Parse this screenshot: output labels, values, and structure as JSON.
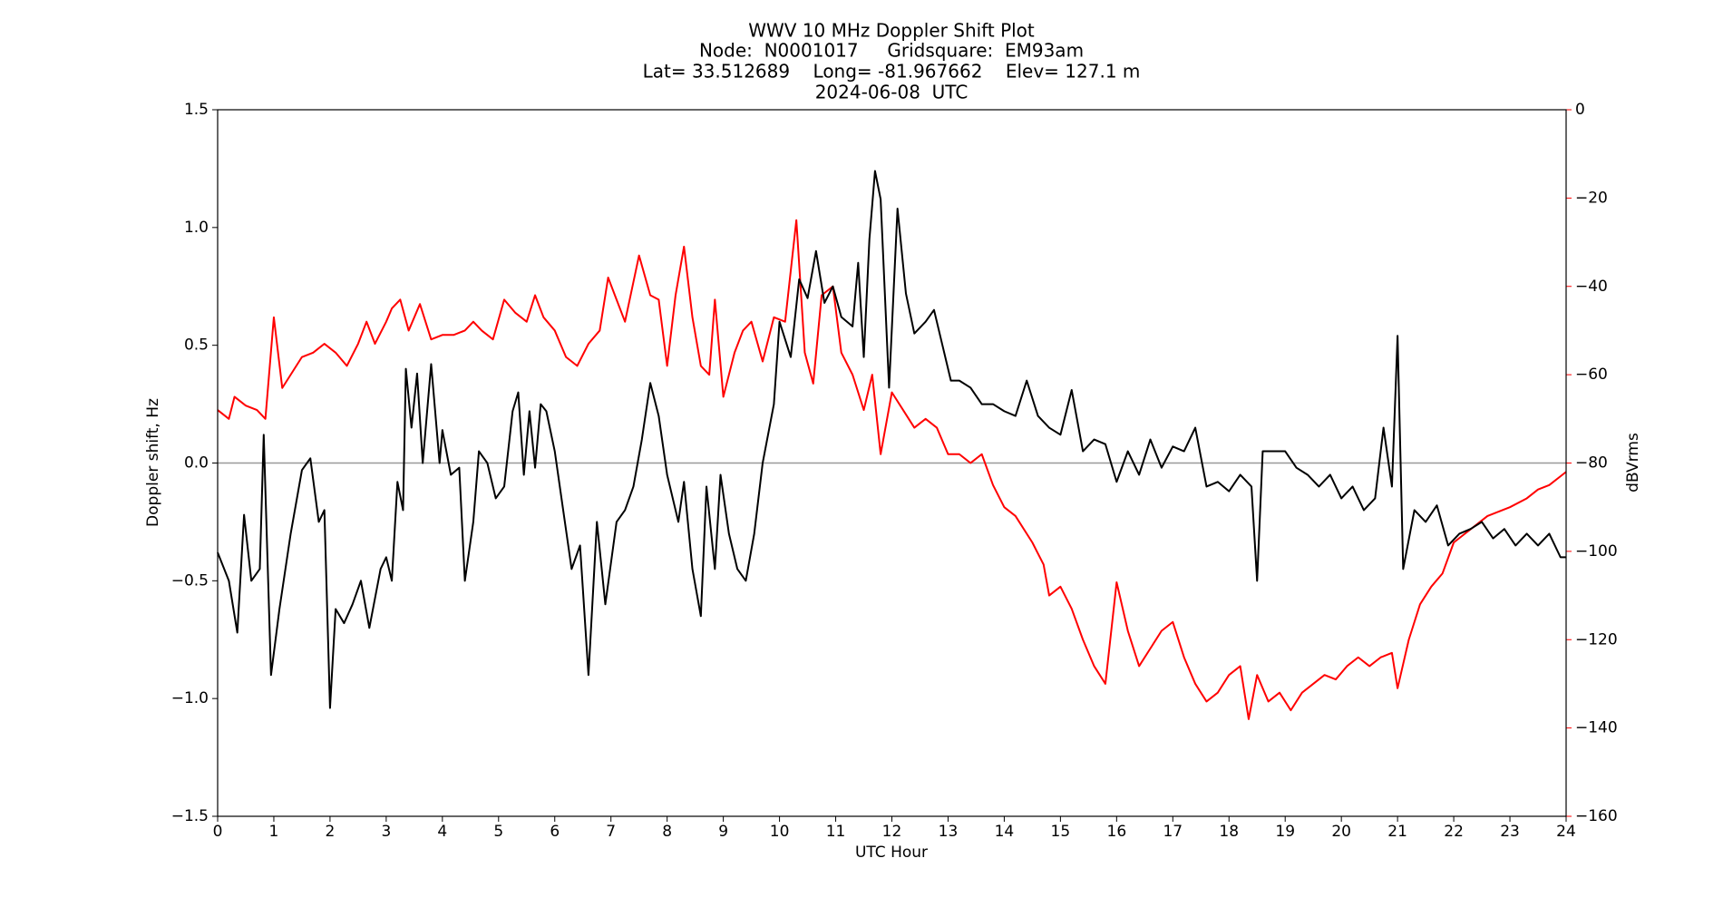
{
  "chart_data": {
    "type": "line",
    "title": "WWV 10 MHz Doppler Shift Plot",
    "subtitle": [
      "Node:  N0001017     Gridsquare:  EM93am",
      "Lat= 33.512689    Long= -81.967662    Elev= 127.1 m",
      "2024-06-08  UTC"
    ],
    "x_label": "UTC Hour",
    "y_label": "Doppler shift, Hz",
    "y2_label": "dBVrms",
    "xlim": [
      0,
      24
    ],
    "xticks": [
      0,
      1,
      2,
      3,
      4,
      5,
      6,
      7,
      8,
      9,
      10,
      11,
      12,
      13,
      14,
      15,
      16,
      17,
      18,
      19,
      20,
      21,
      22,
      23,
      24
    ],
    "ylim": [
      -1.5,
      1.5
    ],
    "yticks": [
      {
        "value": -1.5,
        "label": "−1.5"
      },
      {
        "value": -1.0,
        "label": "−1.0"
      },
      {
        "value": -0.5,
        "label": "−0.5"
      },
      {
        "value": 0,
        "label": "0.0"
      },
      {
        "value": 0.5,
        "label": "0.5"
      },
      {
        "value": 1.0,
        "label": "1.0"
      },
      {
        "value": 1.5,
        "label": "1.5"
      }
    ],
    "y2lim": [
      -160,
      0
    ],
    "y2ticks": [
      {
        "value": -160,
        "label": "−160"
      },
      {
        "value": -140,
        "label": "−140"
      },
      {
        "value": -120,
        "label": "−120"
      },
      {
        "value": -100,
        "label": "−100"
      },
      {
        "value": -80,
        "label": "−80"
      },
      {
        "value": -60,
        "label": "−60"
      },
      {
        "value": -40,
        "label": "−40"
      },
      {
        "value": -20,
        "label": "−20"
      },
      0
    ],
    "y2_color": "#ff0000",
    "reference_line": 0,
    "series": [
      {
        "color": "#000000",
        "x": [
          0,
          0.2,
          0.35,
          0.47,
          0.6,
          0.75,
          0.82,
          0.95,
          1.1,
          1.3,
          1.5,
          1.65,
          1.8,
          1.9,
          2.0,
          2.1,
          2.25,
          2.4,
          2.55,
          2.7,
          2.9,
          3.0,
          3.1,
          3.2,
          3.3,
          3.35,
          3.45,
          3.55,
          3.65,
          3.8,
          3.95,
          4.0,
          4.15,
          4.3,
          4.4,
          4.55,
          4.65,
          4.8,
          4.95,
          5.1,
          5.25,
          5.35,
          5.45,
          5.55,
          5.65,
          5.75,
          5.85,
          6.0,
          6.15,
          6.3,
          6.45,
          6.6,
          6.75,
          6.9,
          7.1,
          7.25,
          7.4,
          7.55,
          7.7,
          7.85,
          8.0,
          8.2,
          8.3,
          8.45,
          8.6,
          8.7,
          8.85,
          8.95,
          9.1,
          9.25,
          9.4,
          9.55,
          9.7,
          9.9,
          10.0,
          10.2,
          10.35,
          10.5,
          10.65,
          10.8,
          10.95,
          11.1,
          11.3,
          11.4,
          11.5,
          11.6,
          11.7,
          11.8,
          11.95,
          12.1,
          12.25,
          12.4,
          12.6,
          12.75,
          12.9,
          13.05,
          13.2,
          13.4,
          13.6,
          13.8,
          14.0,
          14.2,
          14.4,
          14.6,
          14.8,
          15.0,
          15.2,
          15.4,
          15.6,
          15.8,
          16.0,
          16.2,
          16.4,
          16.6,
          16.8,
          17.0,
          17.2,
          17.4,
          17.6,
          17.8,
          18.0,
          18.2,
          18.4,
          18.5,
          18.6,
          18.8,
          19.0,
          19.2,
          19.4,
          19.6,
          19.8,
          20.0,
          20.2,
          20.4,
          20.6,
          20.75,
          20.9,
          21.0,
          21.1,
          21.3,
          21.5,
          21.7,
          21.9,
          22.1,
          22.3,
          22.5,
          22.7,
          22.9,
          23.1,
          23.3,
          23.5,
          23.7,
          23.9,
          24.0
        ],
        "values": [
          -0.38,
          -0.5,
          -0.72,
          -0.22,
          -0.5,
          -0.45,
          0.12,
          -0.9,
          -0.62,
          -0.3,
          -0.03,
          0.02,
          -0.25,
          -0.2,
          -1.04,
          -0.62,
          -0.68,
          -0.6,
          -0.5,
          -0.7,
          -0.45,
          -0.4,
          -0.5,
          -0.08,
          -0.2,
          0.4,
          0.15,
          0.38,
          0.0,
          0.42,
          0.0,
          0.14,
          -0.05,
          -0.02,
          -0.5,
          -0.25,
          0.05,
          0.0,
          -0.15,
          -0.1,
          0.22,
          0.3,
          -0.05,
          0.22,
          -0.02,
          0.25,
          0.22,
          0.05,
          -0.2,
          -0.45,
          -0.35,
          -0.9,
          -0.25,
          -0.6,
          -0.25,
          -0.2,
          -0.1,
          0.1,
          0.34,
          0.2,
          -0.05,
          -0.25,
          -0.08,
          -0.45,
          -0.65,
          -0.1,
          -0.45,
          -0.05,
          -0.3,
          -0.45,
          -0.5,
          -0.3,
          0.0,
          0.25,
          0.6,
          0.45,
          0.78,
          0.7,
          0.9,
          0.68,
          0.75,
          0.62,
          0.58,
          0.85,
          0.45,
          0.95,
          1.24,
          1.12,
          0.32,
          1.08,
          0.72,
          0.55,
          0.6,
          0.65,
          0.5,
          0.35,
          0.35,
          0.32,
          0.25,
          0.25,
          0.22,
          0.2,
          0.35,
          0.2,
          0.15,
          0.12,
          0.31,
          0.05,
          0.1,
          0.08,
          -0.08,
          0.05,
          -0.05,
          0.1,
          -0.02,
          0.07,
          0.05,
          0.15,
          -0.1,
          -0.08,
          -0.12,
          -0.05,
          -0.1,
          -0.5,
          0.05,
          0.05,
          0.05,
          -0.02,
          -0.05,
          -0.1,
          -0.05,
          -0.15,
          -0.1,
          -0.2,
          -0.15,
          0.15,
          -0.1,
          0.54,
          -0.45,
          -0.2,
          -0.25,
          -0.18,
          -0.35,
          -0.3,
          -0.28,
          -0.25,
          -0.32,
          -0.28,
          -0.35,
          -0.3,
          -0.35,
          -0.3,
          -0.4,
          -0.4
        ]
      },
      {
        "color": "#ff0000",
        "axis": "y2",
        "x": [
          0,
          0.2,
          0.3,
          0.5,
          0.7,
          0.85,
          1.0,
          1.15,
          1.3,
          1.5,
          1.7,
          1.9,
          2.1,
          2.3,
          2.5,
          2.65,
          2.8,
          3.0,
          3.1,
          3.25,
          3.4,
          3.6,
          3.8,
          4.0,
          4.2,
          4.4,
          4.55,
          4.7,
          4.9,
          5.1,
          5.3,
          5.5,
          5.65,
          5.8,
          6.0,
          6.2,
          6.4,
          6.6,
          6.8,
          6.95,
          7.1,
          7.25,
          7.5,
          7.7,
          7.85,
          8.0,
          8.15,
          8.3,
          8.45,
          8.6,
          8.75,
          8.85,
          9.0,
          9.2,
          9.35,
          9.5,
          9.7,
          9.9,
          10.1,
          10.3,
          10.45,
          10.6,
          10.75,
          10.95,
          11.1,
          11.3,
          11.5,
          11.65,
          11.8,
          12.0,
          12.2,
          12.4,
          12.6,
          12.8,
          13.0,
          13.2,
          13.4,
          13.6,
          13.8,
          14.0,
          14.2,
          14.5,
          14.7,
          14.8,
          15.0,
          15.2,
          15.4,
          15.6,
          15.8,
          16.0,
          16.2,
          16.4,
          16.6,
          16.8,
          17.0,
          17.2,
          17.4,
          17.6,
          17.8,
          18.0,
          18.2,
          18.35,
          18.5,
          18.7,
          18.9,
          19.1,
          19.3,
          19.5,
          19.7,
          19.9,
          20.1,
          20.3,
          20.5,
          20.7,
          20.9,
          21.0,
          21.2,
          21.4,
          21.6,
          21.8,
          22.0,
          22.2,
          22.4,
          22.6,
          22.8,
          23.0,
          23.3,
          23.5,
          23.7,
          23.9,
          24.0
        ],
        "values": [
          -68,
          -70,
          -65,
          -67,
          -68,
          -70,
          -47,
          -63,
          -60,
          -56,
          -55,
          -53,
          -55,
          -58,
          -53,
          -48,
          -53,
          -48,
          -45,
          -43,
          -50,
          -44,
          -52,
          -51,
          -51,
          -50,
          -48,
          -50,
          -52,
          -43,
          -46,
          -48,
          -42,
          -47,
          -50,
          -56,
          -58,
          -53,
          -50,
          -38,
          -43,
          -48,
          -33,
          -42,
          -43,
          -58,
          -42,
          -31,
          -47,
          -58,
          -60,
          -43,
          -65,
          -55,
          -50,
          -48,
          -57,
          -47,
          -48,
          -25,
          -55,
          -62,
          -42,
          -40,
          -55,
          -60,
          -68,
          -60,
          -78,
          -64,
          -68,
          -72,
          -70,
          -72,
          -78,
          -78,
          -80,
          -78,
          -85,
          -90,
          -92,
          -98,
          -103,
          -110,
          -108,
          -113,
          -120,
          -126,
          -130,
          -107,
          -118,
          -126,
          -122,
          -118,
          -116,
          -124,
          -130,
          -134,
          -132,
          -128,
          -126,
          -138,
          -128,
          -134,
          -132,
          -136,
          -132,
          -130,
          -128,
          -129,
          -126,
          -124,
          -126,
          -124,
          -123,
          -131,
          -120,
          -112,
          -108,
          -105,
          -98,
          -96,
          -94,
          -92,
          -91,
          -90,
          -88,
          -86,
          -85,
          -83,
          -82
        ]
      }
    ]
  }
}
